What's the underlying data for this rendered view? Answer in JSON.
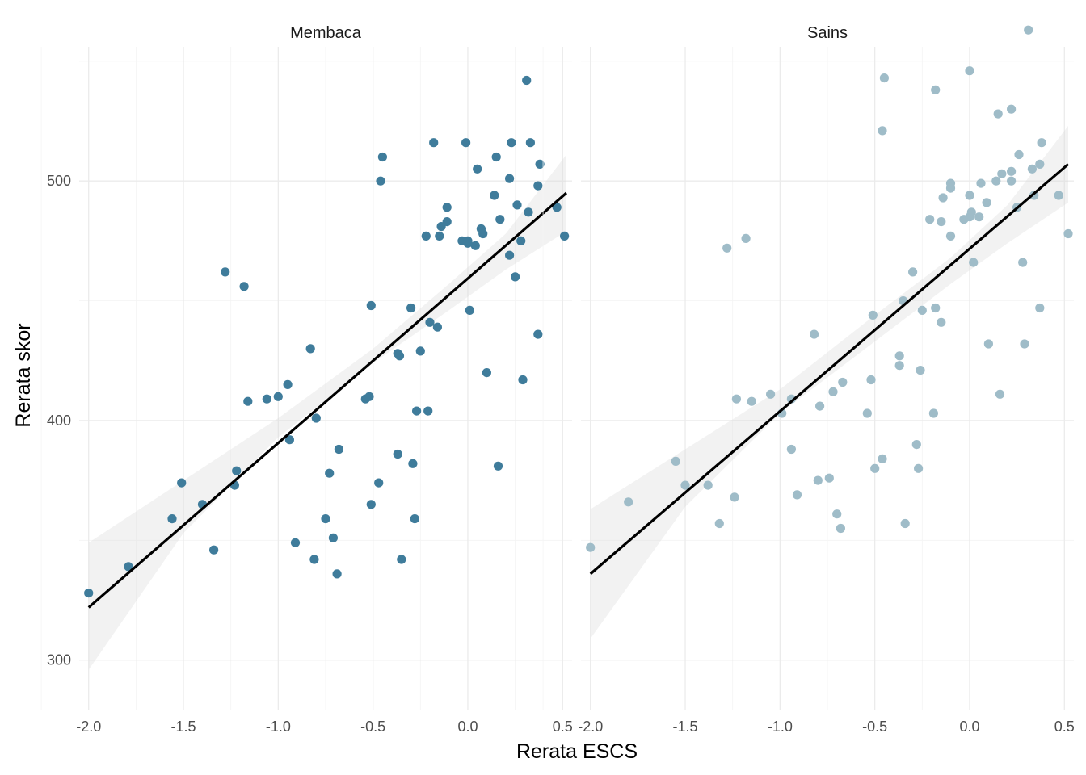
{
  "chart_data": {
    "type": "scatter",
    "xlabel": "Rerata ESCS",
    "ylabel": "Rerata skor",
    "xlim": [
      -2.05,
      0.55
    ],
    "ylim": [
      279,
      556
    ],
    "x_ticks": [
      -2.0,
      -1.5,
      -1.0,
      -0.5,
      0.0,
      0.5
    ],
    "y_ticks": [
      300,
      400,
      500
    ],
    "x_tick_labels": [
      "-2.0",
      "-1.5",
      "-1.0",
      "-0.5",
      "0.0",
      "0.5"
    ],
    "y_tick_labels": [
      "300",
      "400",
      "500"
    ],
    "grid": true,
    "panels": [
      {
        "strip_label": "Membaca",
        "point_color": "#3f7c9b",
        "fit": {
          "x0": -2.0,
          "y0": 322,
          "x1": 0.52,
          "y1": 495
        },
        "band": {
          "x": [
            -2.0,
            -1.5,
            -1.0,
            -0.5,
            -0.1,
            0.2,
            0.52
          ],
          "lower": [
            296,
            353,
            393,
            424,
            446,
            463,
            479
          ],
          "upper": [
            349,
            375,
            401,
            430,
            457,
            478,
            511
          ]
        },
        "points": [
          [
            -2.0,
            328
          ],
          [
            -1.79,
            339
          ],
          [
            -1.56,
            359
          ],
          [
            -1.51,
            374
          ],
          [
            -1.4,
            365
          ],
          [
            -1.34,
            346
          ],
          [
            -1.28,
            462
          ],
          [
            -1.23,
            373
          ],
          [
            -1.22,
            379
          ],
          [
            -1.18,
            456
          ],
          [
            -1.16,
            408
          ],
          [
            -1.06,
            409
          ],
          [
            -1.0,
            410
          ],
          [
            -0.95,
            415
          ],
          [
            -0.94,
            392
          ],
          [
            -0.91,
            349
          ],
          [
            -0.83,
            430
          ],
          [
            -0.81,
            342
          ],
          [
            -0.8,
            401
          ],
          [
            -0.75,
            359
          ],
          [
            -0.73,
            378
          ],
          [
            -0.71,
            351
          ],
          [
            -0.69,
            336
          ],
          [
            -0.68,
            388
          ],
          [
            -0.54,
            409
          ],
          [
            -0.52,
            410
          ],
          [
            -0.51,
            448
          ],
          [
            -0.51,
            365
          ],
          [
            -0.47,
            374
          ],
          [
            -0.46,
            500
          ],
          [
            -0.45,
            510
          ],
          [
            -0.37,
            428
          ],
          [
            -0.37,
            386
          ],
          [
            -0.36,
            427
          ],
          [
            -0.35,
            342
          ],
          [
            -0.3,
            447
          ],
          [
            -0.29,
            382
          ],
          [
            -0.28,
            359
          ],
          [
            -0.27,
            404
          ],
          [
            -0.25,
            429
          ],
          [
            -0.22,
            477
          ],
          [
            -0.21,
            404
          ],
          [
            -0.2,
            441
          ],
          [
            -0.18,
            516
          ],
          [
            -0.16,
            439
          ],
          [
            -0.15,
            477
          ],
          [
            -0.14,
            481
          ],
          [
            -0.11,
            483
          ],
          [
            -0.11,
            489
          ],
          [
            -0.03,
            475
          ],
          [
            -0.01,
            516
          ],
          [
            0.0,
            475
          ],
          [
            0.0,
            474
          ],
          [
            0.01,
            446
          ],
          [
            0.04,
            473
          ],
          [
            0.05,
            505
          ],
          [
            0.07,
            480
          ],
          [
            0.08,
            478
          ],
          [
            0.1,
            420
          ],
          [
            0.15,
            510
          ],
          [
            0.14,
            494
          ],
          [
            0.16,
            381
          ],
          [
            0.17,
            484
          ],
          [
            0.22,
            501
          ],
          [
            0.22,
            469
          ],
          [
            0.23,
            516
          ],
          [
            0.25,
            460
          ],
          [
            0.26,
            490
          ],
          [
            0.28,
            475
          ],
          [
            0.29,
            417
          ],
          [
            0.31,
            542
          ],
          [
            0.33,
            516
          ],
          [
            0.32,
            487
          ],
          [
            0.37,
            498
          ],
          [
            0.38,
            507
          ],
          [
            0.37,
            436
          ],
          [
            0.47,
            489
          ],
          [
            0.51,
            477
          ]
        ]
      },
      {
        "strip_label": "Sains",
        "point_color": "#9fbcc8",
        "fit": {
          "x0": -2.0,
          "y0": 336,
          "x1": 0.52,
          "y1": 507
        },
        "band": {
          "x": [
            -2.0,
            -1.5,
            -1.0,
            -0.5,
            -0.1,
            0.2,
            0.52
          ],
          "lower": [
            309,
            364,
            403,
            433,
            457,
            474,
            491
          ],
          "upper": [
            363,
            388,
            413,
            444,
            468,
            490,
            523
          ]
        },
        "points": [
          [
            -2.0,
            347
          ],
          [
            -1.8,
            366
          ],
          [
            -1.55,
            383
          ],
          [
            -1.5,
            373
          ],
          [
            -1.38,
            373
          ],
          [
            -1.32,
            357
          ],
          [
            -1.28,
            472
          ],
          [
            -1.24,
            368
          ],
          [
            -1.23,
            409
          ],
          [
            -1.18,
            476
          ],
          [
            -1.15,
            408
          ],
          [
            -1.05,
            411
          ],
          [
            -0.99,
            403
          ],
          [
            -0.94,
            409
          ],
          [
            -0.94,
            388
          ],
          [
            -0.91,
            369
          ],
          [
            -0.82,
            436
          ],
          [
            -0.8,
            375
          ],
          [
            -0.79,
            406
          ],
          [
            -0.74,
            376
          ],
          [
            -0.72,
            412
          ],
          [
            -0.7,
            361
          ],
          [
            -0.68,
            355
          ],
          [
            -0.67,
            416
          ],
          [
            -0.54,
            403
          ],
          [
            -0.52,
            417
          ],
          [
            -0.51,
            444
          ],
          [
            -0.5,
            380
          ],
          [
            -0.46,
            384
          ],
          [
            -0.46,
            521
          ],
          [
            -0.45,
            543
          ],
          [
            -0.37,
            423
          ],
          [
            -0.37,
            427
          ],
          [
            -0.35,
            450
          ],
          [
            -0.34,
            357
          ],
          [
            -0.3,
            462
          ],
          [
            -0.28,
            390
          ],
          [
            -0.27,
            380
          ],
          [
            -0.26,
            421
          ],
          [
            -0.25,
            446
          ],
          [
            -0.21,
            484
          ],
          [
            -0.19,
            403
          ],
          [
            -0.18,
            447
          ],
          [
            -0.18,
            538
          ],
          [
            -0.15,
            441
          ],
          [
            -0.15,
            483
          ],
          [
            -0.14,
            493
          ],
          [
            -0.1,
            477
          ],
          [
            -0.1,
            497
          ],
          [
            -0.1,
            499
          ],
          [
            -0.03,
            484
          ],
          [
            0.0,
            485
          ],
          [
            0.0,
            494
          ],
          [
            0.0,
            546
          ],
          [
            0.01,
            487
          ],
          [
            0.02,
            466
          ],
          [
            0.05,
            485
          ],
          [
            0.06,
            499
          ],
          [
            0.09,
            491
          ],
          [
            0.1,
            432
          ],
          [
            0.14,
            500
          ],
          [
            0.15,
            528
          ],
          [
            0.16,
            411
          ],
          [
            0.17,
            503
          ],
          [
            0.22,
            500
          ],
          [
            0.22,
            504
          ],
          [
            0.22,
            530
          ],
          [
            0.25,
            489
          ],
          [
            0.26,
            511
          ],
          [
            0.28,
            466
          ],
          [
            0.29,
            432
          ],
          [
            0.31,
            563
          ],
          [
            0.33,
            505
          ],
          [
            0.34,
            494
          ],
          [
            0.37,
            507
          ],
          [
            0.38,
            516
          ],
          [
            0.37,
            447
          ],
          [
            0.47,
            494
          ],
          [
            0.52,
            478
          ]
        ]
      }
    ]
  }
}
